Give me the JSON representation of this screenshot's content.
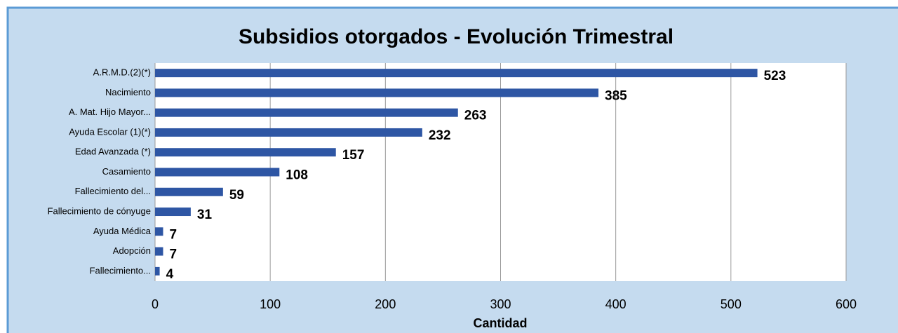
{
  "chart_data": {
    "type": "hbar",
    "title": "Subsidios otorgados - Evolución Trimestral",
    "categories": [
      "A.R.M.D.(2)(*)",
      "Nacimiento",
      "A. Mat. Hijo Mayor...",
      "Ayuda Escolar (1)(*)",
      "Edad Avanzada (*)",
      "Casamiento",
      "Fallecimiento del...",
      "Fallecimiento de cónyuge",
      "Ayuda Médica",
      "Adopción",
      "Fallecimiento..."
    ],
    "values": [
      523,
      385,
      263,
      232,
      157,
      108,
      59,
      31,
      7,
      7,
      4
    ],
    "color": "#2e56a4",
    "xlabel": "Cantidad",
    "xlim": [
      0,
      600
    ],
    "xticks": [
      0,
      100,
      200,
      300,
      400,
      500,
      600
    ],
    "grid": true
  }
}
